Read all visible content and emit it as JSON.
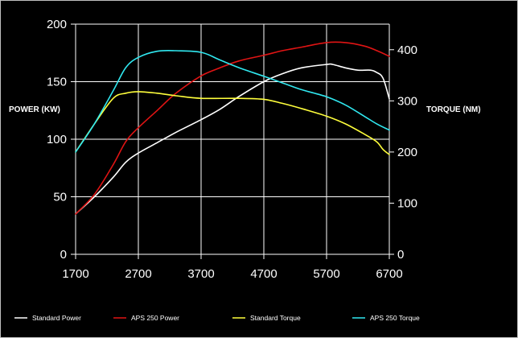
{
  "chart_data": {
    "type": "line",
    "title": "",
    "xlabel": "",
    "ylabel_left": "POWER (KW)",
    "ylabel_right": "TORQUE (NM)",
    "x_ticks": [
      1700,
      2700,
      3700,
      4700,
      5700,
      6700
    ],
    "y_left_ticks": [
      0,
      50,
      100,
      150,
      200
    ],
    "y_right_ticks": [
      0,
      100,
      200,
      300,
      400
    ],
    "xlim": [
      1700,
      6700
    ],
    "ylim_left": [
      0,
      200
    ],
    "ylim_right": [
      0,
      450
    ],
    "grid": true,
    "legend_position": "bottom",
    "series": [
      {
        "name": "Standard Power",
        "axis": "left",
        "color": "#ffffff",
        "x": [
          1700,
          2000,
          2300,
          2500,
          2700,
          3000,
          3300,
          3700,
          4000,
          4300,
          4700,
          5000,
          5300,
          5700,
          5800,
          6000,
          6200,
          6400,
          6500,
          6600,
          6700
        ],
        "values": [
          35,
          50,
          67,
          80,
          88,
          97,
          106,
          117,
          126,
          137,
          150,
          157,
          162,
          165,
          165,
          162,
          160,
          160,
          158,
          153,
          135
        ]
      },
      {
        "name": "APS 250 Power",
        "axis": "left",
        "color": "#e01414",
        "x": [
          1700,
          2000,
          2300,
          2500,
          2700,
          3000,
          3300,
          3700,
          4000,
          4300,
          4700,
          5000,
          5300,
          5700,
          6000,
          6300,
          6500,
          6700
        ],
        "values": [
          35,
          52,
          78,
          98,
          110,
          125,
          140,
          155,
          162,
          168,
          173,
          177,
          180,
          184,
          184,
          181,
          177,
          172
        ]
      },
      {
        "name": "Standard Torque",
        "axis": "right",
        "color": "#ffff3c",
        "x": [
          1700,
          2000,
          2300,
          2500,
          2700,
          3000,
          3300,
          3700,
          4300,
          4700,
          5000,
          5300,
          5700,
          6000,
          6300,
          6500,
          6600,
          6700
        ],
        "values": [
          200,
          255,
          305,
          315,
          318,
          315,
          310,
          305,
          305,
          303,
          295,
          285,
          270,
          255,
          235,
          220,
          205,
          195
        ]
      },
      {
        "name": "APS 250 Torque",
        "axis": "right",
        "color": "#30e8f0",
        "x": [
          1700,
          2000,
          2300,
          2500,
          2700,
          3000,
          3300,
          3700,
          4000,
          4300,
          4700,
          5000,
          5300,
          5700,
          6000,
          6300,
          6500,
          6700
        ],
        "values": [
          200,
          255,
          320,
          365,
          385,
          397,
          398,
          395,
          380,
          365,
          348,
          335,
          322,
          308,
          292,
          270,
          255,
          243
        ]
      }
    ]
  }
}
